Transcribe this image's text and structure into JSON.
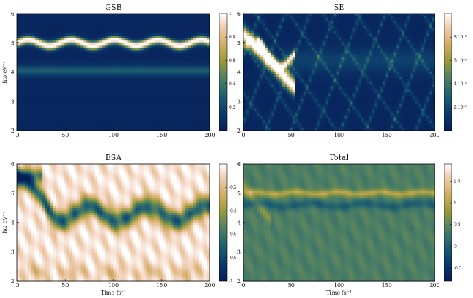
{
  "chart_data": [
    {
      "type": "heatmap",
      "title": "GSB",
      "xlabel": "",
      "ylabel": "ħω eV⁻¹",
      "xlim": [
        0,
        200
      ],
      "ylim": [
        2,
        6
      ],
      "x_ticks": [
        "0",
        "50",
        "100",
        "150",
        "200"
      ],
      "y_ticks": [
        "2",
        "3",
        "4",
        "5",
        "6"
      ],
      "colorbar": {
        "min": 0,
        "max": 1,
        "ticks": [
          "0.2",
          "0.4",
          "0.6",
          "0.8",
          "1"
        ]
      },
      "features": [
        {
          "kind": "oscillating-band",
          "center": 5.0,
          "amplitude": 0.1,
          "period": 45,
          "width": 0.13,
          "intensity": 1.0
        },
        {
          "kind": "band",
          "center": 4.05,
          "width": 0.18,
          "intensity": 0.22
        }
      ]
    },
    {
      "type": "heatmap",
      "title": "SE",
      "xlabel": "",
      "ylabel": "",
      "xlim": [
        0,
        200
      ],
      "ylim": [
        2,
        6
      ],
      "x_ticks": [
        "0",
        "50",
        "100",
        "150",
        "200"
      ],
      "y_ticks": [
        "2",
        "3",
        "4",
        "5",
        "6"
      ],
      "colorbar": {
        "min": 0,
        "max": 0.01,
        "ticks": [
          "2·10⁻³",
          "4·10⁻³",
          "6·10⁻³",
          "8·10⁻³"
        ]
      },
      "features": [
        {
          "kind": "early-decay",
          "t_start": 0,
          "t_end": 50,
          "e_start": 5.3,
          "e_end": 3.6,
          "intensity": 1.0
        },
        {
          "kind": "diagonal-streaks",
          "intensity": 0.45
        }
      ]
    },
    {
      "type": "heatmap",
      "title": "ESA",
      "xlabel": "Time fs⁻¹",
      "ylabel": "ħω eV⁻¹",
      "xlim": [
        0,
        200
      ],
      "ylim": [
        2,
        6
      ],
      "x_ticks": [
        "0",
        "50",
        "100",
        "150",
        "200"
      ],
      "y_ticks": [
        "2",
        "3",
        "4",
        "5",
        "6"
      ],
      "colorbar": {
        "min": -1,
        "max": 0,
        "ticks": [
          "-1",
          "-0.8",
          "-0.6",
          "-0.4",
          "-0.2"
        ]
      },
      "features": [
        {
          "kind": "oscillating-band",
          "center": 4.3,
          "amplitude": 0.25,
          "period": 60,
          "width": 0.35,
          "intensity": 1.0
        }
      ]
    },
    {
      "type": "heatmap",
      "title": "Total",
      "xlabel": "Time fs⁻¹",
      "ylabel": "",
      "xlim": [
        0,
        200
      ],
      "ylim": [
        2,
        6
      ],
      "x_ticks": [
        "0",
        "50",
        "100",
        "150",
        "200"
      ],
      "y_ticks": [
        "2",
        "3",
        "4",
        "5",
        "6"
      ],
      "colorbar": {
        "min": -0.8,
        "max": 1.9,
        "ticks": [
          "-0.5",
          "0",
          "0.5",
          "1",
          "1.5"
        ]
      },
      "features": [
        {
          "kind": "band",
          "center": 5.0,
          "width": 0.12,
          "intensity": 0.55
        },
        {
          "kind": "band",
          "center": 4.6,
          "width": 0.15,
          "intensity": -0.4
        }
      ]
    }
  ],
  "colors": {
    "colormap": [
      "#081d58",
      "#0b3a6a",
      "#1f6070",
      "#4f8064",
      "#9a9a3c",
      "#d6b06a",
      "#f2d2bc",
      "#ffffff"
    ]
  }
}
